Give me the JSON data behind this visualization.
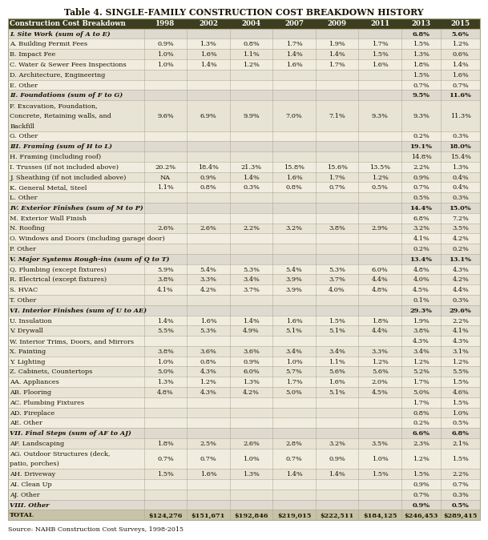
{
  "title": "Table 4. SINGLE-FAMILY CONSTRUCTION COST BREAKDOWN HISTORY",
  "source": "Source: NAHB Construction Cost Surveys, 1998-2015",
  "columns": [
    "Construction Cost Breakdown",
    "1998",
    "2002",
    "2004",
    "2007",
    "2009",
    "2011",
    "2013",
    "2015"
  ],
  "rows": [
    [
      "I. Site Work (sum of A to E)",
      "",
      "",
      "",
      "",
      "",
      "",
      "6.8%",
      "5.6%"
    ],
    [
      "A. Building Permit Fees",
      "0.9%",
      "1.3%",
      "0.8%",
      "1.7%",
      "1.9%",
      "1.7%",
      "1.5%",
      "1.2%"
    ],
    [
      "B. Impact Fee",
      "1.0%",
      "1.6%",
      "1.1%",
      "1.4%",
      "1.4%",
      "1.5%",
      "1.3%",
      "0.6%"
    ],
    [
      "C. Water & Sewer Fees Inspections",
      "1.0%",
      "1.4%",
      "1.2%",
      "1.6%",
      "1.7%",
      "1.6%",
      "1.8%",
      "1.4%"
    ],
    [
      "D. Architecture, Engineering",
      "",
      "",
      "",
      "",
      "",
      "",
      "1.5%",
      "1.6%"
    ],
    [
      "E. Other",
      "",
      "",
      "",
      "",
      "",
      "",
      "0.7%",
      "0.7%"
    ],
    [
      "II. Foundations (sum of F to G)",
      "",
      "",
      "",
      "",
      "",
      "",
      "9.5%",
      "11.6%"
    ],
    [
      "F. Excavation, Foundation,\nConcrete, Retaining walls, and\nBackfill",
      "9.6%",
      "6.9%",
      "9.9%",
      "7.0%",
      "7.1%",
      "9.3%",
      "9.3%",
      "11.3%"
    ],
    [
      "G. Other",
      "",
      "",
      "",
      "",
      "",
      "",
      "0.2%",
      "0.3%"
    ],
    [
      "III. Framing (sum of H to L)",
      "",
      "",
      "",
      "",
      "",
      "",
      "19.1%",
      "18.0%"
    ],
    [
      "H. Framing (including roof)",
      "",
      "",
      "",
      "",
      "",
      "",
      "14.8%",
      "15.4%"
    ],
    [
      "I. Trusses (if not included above)",
      "20.2%",
      "18.4%",
      "21.3%",
      "15.8%",
      "15.6%",
      "13.5%",
      "2.2%",
      "1.3%"
    ],
    [
      "J. Sheathing (if not included above)",
      "NA",
      "0.9%",
      "1.4%",
      "1.6%",
      "1.7%",
      "1.2%",
      "0.9%",
      "0.4%"
    ],
    [
      "K. General Metal, Steel",
      "1.1%",
      "0.8%",
      "0.3%",
      "0.8%",
      "0.7%",
      "0.5%",
      "0.7%",
      "0.4%"
    ],
    [
      "L. Other",
      "",
      "",
      "",
      "",
      "",
      "",
      "0.5%",
      "0.3%"
    ],
    [
      "IV. Exterior Finishes (sum of M to P)",
      "",
      "",
      "",
      "",
      "",
      "",
      "14.4%",
      "15.0%"
    ],
    [
      "M. Exterior Wall Finish",
      "",
      "",
      "",
      "",
      "",
      "",
      "6.8%",
      "7.2%"
    ],
    [
      "N. Roofing",
      "2.6%",
      "2.6%",
      "2.2%",
      "3.2%",
      "3.8%",
      "2.9%",
      "3.2%",
      "3.5%"
    ],
    [
      "O. Windows and Doors (including garage door)",
      "",
      "",
      "",
      "",
      "",
      "",
      "4.1%",
      "4.2%"
    ],
    [
      "P. Other",
      "",
      "",
      "",
      "",
      "",
      "",
      "0.2%",
      "0.2%"
    ],
    [
      "V. Major Systems Rough-ins (sum of Q to T)",
      "",
      "",
      "",
      "",
      "",
      "",
      "13.4%",
      "13.1%"
    ],
    [
      "Q. Plumbing (except fixtures)",
      "5.9%",
      "5.4%",
      "5.3%",
      "5.4%",
      "5.3%",
      "6.0%",
      "4.8%",
      "4.3%"
    ],
    [
      "R. Electrical (except fixtures)",
      "3.8%",
      "3.3%",
      "3.4%",
      "3.9%",
      "3.7%",
      "4.4%",
      "4.0%",
      "4.2%"
    ],
    [
      "S. HVAC",
      "4.1%",
      "4.2%",
      "3.7%",
      "3.9%",
      "4.0%",
      "4.8%",
      "4.5%",
      "4.4%"
    ],
    [
      "T. Other",
      "",
      "",
      "",
      "",
      "",
      "",
      "0.1%",
      "0.3%"
    ],
    [
      "VI. Interior Finishes (sum of U to AE)",
      "",
      "",
      "",
      "",
      "",
      "",
      "29.3%",
      "29.6%"
    ],
    [
      "U. Insulation",
      "1.4%",
      "1.6%",
      "1.4%",
      "1.6%",
      "1.5%",
      "1.8%",
      "1.9%",
      "2.2%"
    ],
    [
      "V. Drywall",
      "5.5%",
      "5.3%",
      "4.9%",
      "5.1%",
      "5.1%",
      "4.4%",
      "3.8%",
      "4.1%"
    ],
    [
      "W. Interior Trims, Doors, and Mirrors",
      "",
      "",
      "",
      "",
      "",
      "",
      "4.3%",
      "4.3%"
    ],
    [
      "X. Painting",
      "3.8%",
      "3.6%",
      "3.6%",
      "3.4%",
      "3.4%",
      "3.3%",
      "3.4%",
      "3.1%"
    ],
    [
      "Y. Lighting",
      "1.0%",
      "0.8%",
      "0.9%",
      "1.0%",
      "1.1%",
      "1.2%",
      "1.2%",
      "1.2%"
    ],
    [
      "Z. Cabinets, Countertops",
      "5.0%",
      "4.3%",
      "6.0%",
      "5.7%",
      "5.6%",
      "5.6%",
      "5.2%",
      "5.5%"
    ],
    [
      "AA. Appliances",
      "1.3%",
      "1.2%",
      "1.3%",
      "1.7%",
      "1.6%",
      "2.0%",
      "1.7%",
      "1.5%"
    ],
    [
      "AB. Flooring",
      "4.8%",
      "4.3%",
      "4.2%",
      "5.0%",
      "5.1%",
      "4.5%",
      "5.0%",
      "4.6%"
    ],
    [
      "AC. Plumbing Fixtures",
      "",
      "",
      "",
      "",
      "",
      "",
      "1.7%",
      "1.5%"
    ],
    [
      "AD. Fireplace",
      "",
      "",
      "",
      "",
      "",
      "",
      "0.8%",
      "1.0%"
    ],
    [
      "AE. Other",
      "",
      "",
      "",
      "",
      "",
      "",
      "0.2%",
      "0.5%"
    ],
    [
      "VII. Final Steps (sum of AF to AJ)",
      "",
      "",
      "",
      "",
      "",
      "",
      "6.6%",
      "6.8%"
    ],
    [
      "AF. Landscaping",
      "1.8%",
      "2.5%",
      "2.6%",
      "2.8%",
      "3.2%",
      "3.5%",
      "2.3%",
      "2.1%"
    ],
    [
      "AG. Outdoor Structures (deck,\npatio, porches)",
      "0.7%",
      "0.7%",
      "1.0%",
      "0.7%",
      "0.9%",
      "1.0%",
      "1.2%",
      "1.5%"
    ],
    [
      "AH. Driveway",
      "1.5%",
      "1.6%",
      "1.3%",
      "1.4%",
      "1.4%",
      "1.5%",
      "1.5%",
      "2.2%"
    ],
    [
      "AI. Clean Up",
      "",
      "",
      "",
      "",
      "",
      "",
      "0.9%",
      "0.7%"
    ],
    [
      "AJ. Other",
      "",
      "",
      "",
      "",
      "",
      "",
      "0.7%",
      "0.3%"
    ],
    [
      "VIII. Other",
      "",
      "",
      "",
      "",
      "",
      "",
      "0.9%",
      "0.5%"
    ],
    [
      "TOTAL",
      "$124,276",
      "$151,671",
      "$192,846",
      "$219,015",
      "$222,511",
      "$184,125",
      "$246,453",
      "$289,415"
    ]
  ],
  "row_types": [
    "section",
    "sub",
    "sub",
    "sub",
    "sub",
    "sub",
    "section",
    "multi3",
    "sub",
    "section",
    "sub",
    "sub",
    "sub",
    "sub",
    "sub",
    "section",
    "sub",
    "sub",
    "single",
    "sub",
    "section",
    "sub",
    "sub",
    "sub",
    "sub",
    "section",
    "sub",
    "sub",
    "sub",
    "sub",
    "sub",
    "sub",
    "sub",
    "sub",
    "sub",
    "sub",
    "sub",
    "section",
    "sub",
    "multi2",
    "sub",
    "sub",
    "sub",
    "section",
    "total"
  ],
  "header_bg": "#3d3d1f",
  "section_bg": "#dedad0",
  "sub_bg_odd": "#f0ede0",
  "sub_bg_even": "#e8e4d5",
  "total_bg": "#c8c3a8",
  "border_color": "#b0ab90",
  "header_text": "#ffffff",
  "body_text": "#1a1500"
}
